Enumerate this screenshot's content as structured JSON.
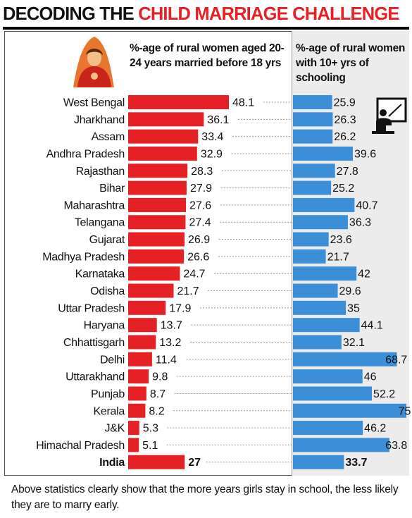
{
  "header": {
    "title_part1": "DECODING THE ",
    "title_part2": "CHILD MARRIAGE CHALLENGE"
  },
  "columns": {
    "left_header": "%-age of rural women aged 20-24 years married before 18 yrs",
    "right_header": "%-age of rural women with 10+ yrs of schooling"
  },
  "footnote": "Above statistics clearly show that the more years girls stay in school, the less likely they are to marry early.",
  "colors": {
    "married_bar": "#e62126",
    "schooling_bar": "#3c8fd6",
    "title_accent": "#e62126"
  },
  "icons": [
    "bride-icon",
    "classroom-icon"
  ],
  "chart_data": {
    "type": "bar",
    "categories": [
      "West Bengal",
      "Jharkhand",
      "Assam",
      "Andhra Pradesh",
      "Rajasthan",
      "Bihar",
      "Maharashtra",
      "Telangana",
      "Gujarat",
      "Madhya Pradesh",
      "Karnataka",
      "Odisha",
      "Uttar Pradesh",
      "Haryana",
      "Chhattisgarh",
      "Delhi",
      "Uttarakhand",
      "Punjab",
      "Kerala",
      "J&K",
      "Himachal Pradesh",
      "India"
    ],
    "series": [
      {
        "name": "%-age of rural women aged 20-24 years married before 18 yrs",
        "values": [
          48.1,
          36.1,
          33.4,
          32.9,
          28.3,
          27.9,
          27.6,
          27.4,
          26.9,
          26.6,
          24.7,
          21.7,
          17.9,
          13.7,
          13.2,
          11.4,
          9.8,
          8.7,
          8.2,
          5.3,
          5.1,
          27
        ],
        "labels": [
          "48.1",
          "36.1",
          "33.4",
          "32.9",
          "28.3",
          "27.9",
          "27.6",
          "27.4",
          "26.9",
          "26.6",
          "24.7",
          "21.7",
          "17.9",
          "13.7",
          "13.2",
          "11.4",
          "9.8",
          "8.7",
          "8.2",
          "5.3",
          "5.1",
          "27"
        ]
      },
      {
        "name": "%-age of rural women with 10+ yrs of schooling",
        "values": [
          25.9,
          26.3,
          26.2,
          39.6,
          27.8,
          25.2,
          40.7,
          36.3,
          23.6,
          21.7,
          42,
          29.6,
          35,
          44.1,
          32.1,
          68.7,
          46,
          52.2,
          75,
          46.2,
          63.8,
          33.7
        ],
        "labels": [
          "25.9",
          "26.3",
          "26.2",
          "39.6",
          "27.8",
          "25.2",
          "40.7",
          "36.3",
          "23.6",
          "21.7",
          "42",
          "29.6",
          "35",
          "44.1",
          "32.1",
          "68.7",
          "46",
          "52.2",
          "75",
          "46.2",
          "63.8",
          "33.7"
        ]
      }
    ],
    "highlight_category": "India",
    "grid": false,
    "legend": "none"
  }
}
